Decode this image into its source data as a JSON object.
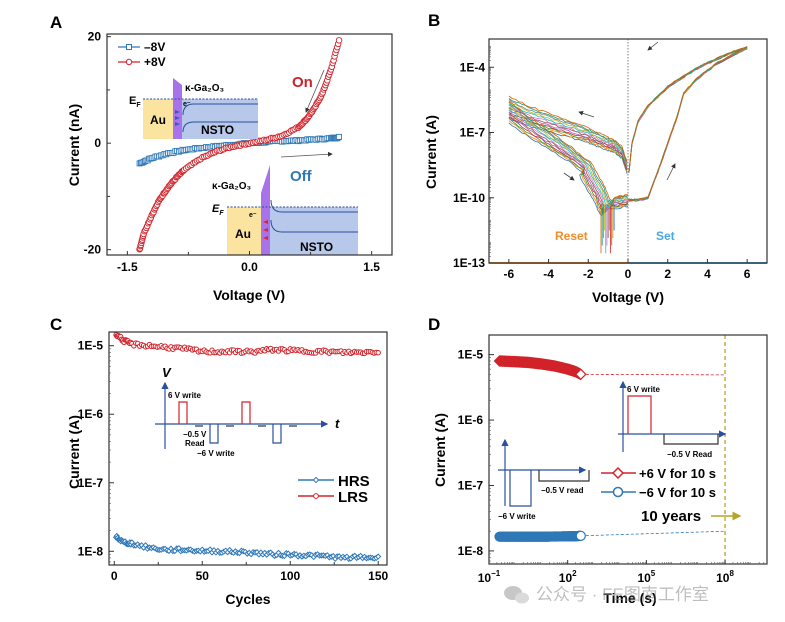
{
  "figure": {
    "watermark": "公众号 · FE图南工作室"
  },
  "chart_data": [
    {
      "panel": "A",
      "type": "scatter",
      "xlabel": "Voltage (V)",
      "ylabel": "Current (nA)",
      "xlim": [
        -1.75,
        1.75
      ],
      "ylim": [
        -21,
        20.5
      ],
      "xticks": [
        -1.5,
        0.0,
        1.5
      ],
      "xtick_labels": [
        "-1.5",
        "0.0",
        "1.5"
      ],
      "yticks": [
        -20,
        0,
        20
      ],
      "ytick_labels": [
        "-20",
        "0",
        "20"
      ],
      "legend": {
        "position": "top-left",
        "entries": [
          "–8V",
          "+8V"
        ]
      },
      "series": [
        {
          "name": "–8V",
          "color": "#2f78b7",
          "marker": "square",
          "x": [
            -1.35,
            -1.2,
            -1.0,
            -0.8,
            -0.6,
            -0.4,
            -0.2,
            0.0,
            0.2,
            0.4,
            0.6,
            0.8,
            1.0,
            1.1
          ],
          "y": [
            -3.8,
            -2.8,
            -1.9,
            -1.3,
            -0.9,
            -0.6,
            -0.3,
            0.0,
            0.2,
            0.4,
            0.5,
            0.7,
            0.9,
            1.1
          ]
        },
        {
          "name": "+8V",
          "color": "#d2232a",
          "marker": "circle",
          "x": [
            -1.35,
            -1.3,
            -1.2,
            -1.1,
            -1.0,
            -0.9,
            -0.8,
            -0.6,
            -0.4,
            -0.2,
            0.0,
            0.2,
            0.4,
            0.6,
            0.7,
            0.8,
            0.9,
            1.0,
            1.1
          ],
          "y": [
            -20,
            -17,
            -13.5,
            -10.5,
            -8.3,
            -6.5,
            -5.0,
            -2.9,
            -1.5,
            -0.6,
            0.0,
            0.6,
            1.4,
            3.0,
            4.5,
            6.6,
            9.5,
            13.8,
            19.3
          ]
        }
      ],
      "annotations": {
        "on_label": "On",
        "off_label": "Off",
        "inset_top": {
          "layer": "κ-Ga₂O₃",
          "ef": "E",
          "ef_sub": "F",
          "metal": "Au",
          "substrate": "NSTO",
          "electron": "e⁻"
        },
        "inset_bottom": {
          "layer": "κ-Ga₂O₃",
          "ef": "E",
          "ef_sub": "F",
          "metal": "Au",
          "substrate": "NSTO",
          "electron": "e⁻"
        }
      }
    },
    {
      "panel": "B",
      "type": "line",
      "xlabel": "Voltage (V)",
      "ylabel": "Current (A)",
      "xlim": [
        -7,
        7
      ],
      "ylim_log10": [
        -13,
        -2.7
      ],
      "xticks": [
        -6,
        -4,
        -2,
        0,
        2,
        4,
        6
      ],
      "xtick_labels": [
        "-6",
        "-4",
        "-2",
        "0",
        "2",
        "4",
        "6"
      ],
      "yticks_log10": [
        -13,
        -10,
        -7,
        -4
      ],
      "ytick_labels": [
        "1E-13",
        "1E-10",
        "1E-7",
        "1E-4"
      ],
      "region_labels": {
        "reset": "Reset",
        "set": "Set",
        "reset_color": "#f28c28",
        "set_color": "#4aa8e0"
      },
      "cycle_colors": [
        "#1f77b4",
        "#ff7f0e",
        "#2ca02c",
        "#d62728",
        "#9467bd",
        "#8c564b",
        "#e377c2",
        "#17becf",
        "#bcbd22",
        "#7f7f7f",
        "#1b9e77",
        "#d95f02"
      ],
      "branches": {
        "set_sweep": {
          "x": [
            0,
            0.5,
            1.0,
            1.5,
            2.0,
            2.5,
            2.8,
            3.5,
            4.5,
            6.0
          ],
          "log10y": [
            -10.1,
            -10.1,
            -10.0,
            -8.8,
            -7.5,
            -6.2,
            -5.2,
            -4.5,
            -3.8,
            -3.1
          ]
        },
        "set_return": {
          "x": [
            6.0,
            5.0,
            4.0,
            3.0,
            2.0,
            1.0,
            0.5,
            0.2,
            0.05
          ],
          "log10y": [
            -3.1,
            -3.4,
            -3.8,
            -4.3,
            -4.9,
            -5.8,
            -6.5,
            -7.5,
            -8.8
          ]
        },
        "reset_sweep": {
          "x": [
            -0.05,
            -0.3,
            -0.7,
            -1.0,
            -1.5,
            -2.0,
            -3.0,
            -4.0,
            -5.0,
            -6.0
          ],
          "log10y": [
            -8.6,
            -7.9,
            -7.6,
            -7.5,
            -7.3,
            -7.1,
            -6.8,
            -6.5,
            -6.2,
            -5.8
          ]
        },
        "reset_return": {
          "x": [
            -6.0,
            -5.0,
            -4.0,
            -3.0,
            -2.2,
            -1.8,
            -1.4,
            -1.2,
            -1.0,
            -0.9,
            -0.5,
            0.0
          ],
          "log10y": [
            -6.0,
            -6.7,
            -7.3,
            -7.9,
            -8.5,
            -9.2,
            -9.8,
            -10.3,
            -10.5,
            -10.2,
            -10.2,
            -10.1
          ]
        }
      }
    },
    {
      "panel": "C",
      "type": "scatter",
      "xlabel": "Cycles",
      "ylabel": "Current (A)",
      "xlim": [
        -3,
        155
      ],
      "ylim_log10": [
        -8.2,
        -4.8
      ],
      "xticks": [
        0,
        50,
        100,
        150
      ],
      "xtick_labels": [
        "0",
        "50",
        "100",
        "150"
      ],
      "yticks_log10": [
        -8,
        -7,
        -6,
        -5
      ],
      "ytick_labels": [
        "1E-8",
        "1E-7",
        "1E-6",
        "1E-5"
      ],
      "legend": {
        "position": "center-right",
        "entries": [
          "HRS",
          "LRS"
        ]
      },
      "series": [
        {
          "name": "HRS",
          "color": "#2f78b7",
          "marker": "diamond",
          "x": [
            1,
            5,
            10,
            20,
            30,
            40,
            50,
            60,
            70,
            80,
            90,
            100,
            110,
            120,
            130,
            140,
            150
          ],
          "y": [
            1.65e-08,
            1.35e-08,
            1.3e-08,
            1.12e-08,
            1.05e-08,
            1.05e-08,
            1.02e-08,
            1e-08,
            9.8e-09,
            9.5e-09,
            9e-09,
            9e-09,
            8.7e-09,
            8.5e-09,
            8e-09,
            8.2e-09,
            8e-09
          ]
        },
        {
          "name": "LRS",
          "color": "#d2232a",
          "marker": "circle",
          "x": [
            1,
            5,
            10,
            20,
            30,
            40,
            50,
            60,
            70,
            80,
            90,
            100,
            110,
            120,
            130,
            140,
            150
          ],
          "y": [
            1.5e-05,
            1.2e-05,
            1.05e-05,
            1e-05,
            9.5e-06,
            9e-06,
            8.2e-06,
            8.2e-06,
            8.2e-06,
            8.2e-06,
            8.8e-06,
            8.5e-06,
            8.3e-06,
            8.2e-06,
            8e-06,
            8e-06,
            8.2e-06
          ]
        }
      ],
      "inset": {
        "v_axis": "V",
        "t_axis": "t",
        "write_pos": "6 V write",
        "read": "−0.5 V",
        "read2": "Read",
        "write_neg": "−6 V write"
      }
    },
    {
      "panel": "D",
      "type": "scatter",
      "xlabel": "Time (s)",
      "ylabel": "Current (A)",
      "xscale": "log",
      "xlim_log10": [
        -1,
        9.6
      ],
      "ylim_log10": [
        -8.2,
        -4.7
      ],
      "xticks_log10": [
        -1,
        2,
        5,
        8
      ],
      "xtick_labels": [
        {
          "base": "10",
          "exp": "−1"
        },
        {
          "base": "10",
          "exp": "2"
        },
        {
          "base": "10",
          "exp": "5"
        },
        {
          "base": "10",
          "exp": "8"
        }
      ],
      "yticks_log10": [
        -8,
        -7,
        -6,
        -5
      ],
      "ytick_labels": [
        "1E-8",
        "1E-7",
        "1E-6",
        "1E-5"
      ],
      "legend": {
        "position": "center-right",
        "entries": [
          "+6 V for 10 s",
          "−6 V for 10 s"
        ]
      },
      "series": [
        {
          "name": "+6 V for 10 s",
          "color": "#d2232a",
          "marker": "diamond",
          "log10x": [
            -0.6,
            0.0,
            0.5,
            1.0,
            1.5,
            2.0,
            2.3,
            2.5
          ],
          "y": [
            8e-06,
            7.8e-06,
            7.6e-06,
            7.2e-06,
            6.7e-06,
            6e-06,
            5.5e-06,
            5e-06
          ],
          "extrapolation": {
            "log10x": [
              2.5,
              8.0
            ],
            "y": [
              5e-06,
              4.9e-06
            ]
          }
        },
        {
          "name": "−6 V for 10 s",
          "color": "#2f78b7",
          "marker": "circle",
          "log10x": [
            -0.6,
            0.0,
            0.5,
            1.0,
            1.5,
            2.0,
            2.3,
            2.5
          ],
          "y": [
            1.65e-08,
            1.65e-08,
            1.65e-08,
            1.65e-08,
            1.66e-08,
            1.67e-08,
            1.68e-08,
            1.7e-08
          ],
          "extrapolation": {
            "log10x": [
              2.5,
              8.0
            ],
            "y": [
              1.7e-08,
              2e-08
            ]
          }
        }
      ],
      "ten_years": {
        "label": "10 years",
        "log10x": 8.0,
        "color": "#b5a528"
      },
      "inset_pos": {
        "write": "6 V write",
        "read": "−0.5 V Read"
      },
      "inset_neg": {
        "write": "−6 V write",
        "read": "−0.5 V read"
      }
    }
  ]
}
